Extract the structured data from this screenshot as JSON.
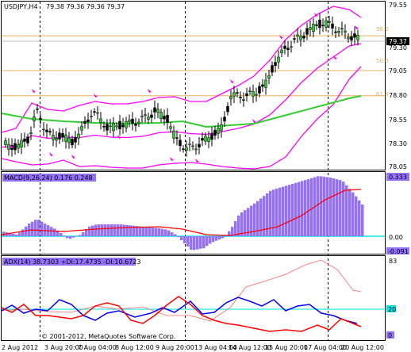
{
  "header": {
    "symbol": "USDJPY,H4",
    "ohlc": "79.38 79.36 79.36 79.37"
  },
  "price_panel": {
    "scale": [
      "79.55",
      "79.30",
      "79.05",
      "78.80",
      "78.55",
      "78.30",
      "78.05"
    ],
    "current_price": "79.37",
    "fib_levels": [
      {
        "label": "38.2",
        "price": 79.43
      },
      {
        "label": "50.0",
        "price": 79.07
      },
      {
        "label": "61.8",
        "price": 78.81
      }
    ]
  },
  "macd_panel": {
    "title": "MACD(9,26,24) 0.176 0.248",
    "scale": [
      "0.333",
      "0.00",
      "-0.091"
    ]
  },
  "adx_panel": {
    "title": "ADX(14) 38.7303 +DI:17.4735 -DI:10.6723",
    "scale": [
      "83",
      "20",
      "0"
    ]
  },
  "copyright": "© 2001-2012, MetaQuotes Software Corp.",
  "time_axis": [
    "2 Aug 2012",
    "3 Aug 20:00",
    "7 Aug 04:00",
    "8 Aug 12:00",
    "9 Aug 20:00",
    "13 Aug 04:00",
    "14 Aug 12:00",
    "15 Aug 20:00",
    "17 Aug 04:00",
    "20 Aug 12:00"
  ],
  "colors": {
    "bollinger": "#ff00ff",
    "ma": "#33cc33",
    "fib": "#e8b060",
    "macd_hist": "#9370ff",
    "macd_signal": "#ff0000",
    "zero_line": "#00e5e5",
    "plus_di": "#0000ff",
    "minus_di": "#ff0000",
    "adx": "#ff6666",
    "current_price_bg": "#000000"
  }
}
